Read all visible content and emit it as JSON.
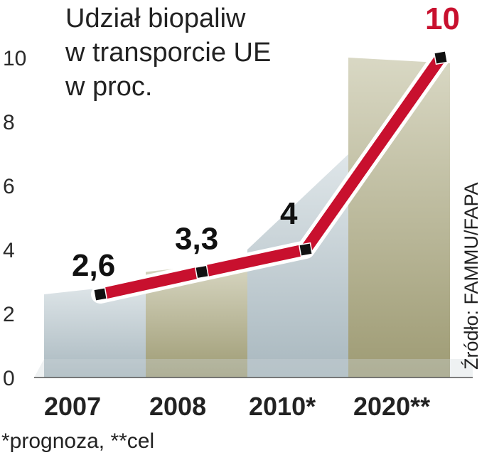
{
  "chart_data": {
    "type": "line",
    "title_lines": [
      "Udział biopaliw",
      "w transporcie UE",
      "w proc."
    ],
    "categories": [
      "2007",
      "2008",
      "2010*",
      "2020**"
    ],
    "values": [
      2.6,
      3.3,
      4,
      10
    ],
    "value_labels": [
      "2,6",
      "3,3",
      "4",
      "10"
    ],
    "highlight_index": 3,
    "y_ticks": [
      "0",
      "2",
      "4",
      "6",
      "8",
      "10"
    ],
    "y_tick_values": [
      0,
      2,
      4,
      6,
      8,
      10
    ],
    "ylim": [
      0,
      10
    ],
    "xlabel": "",
    "ylabel": "",
    "source": "Źródło: FAMMU/FAPA",
    "footnote": "*prognoza, **cel",
    "colors": {
      "line": "#c8102e",
      "line_outline": "#ffffff",
      "marker": "#111111",
      "highlight_label": "#c8102e",
      "band_a": "#b9c6cc",
      "band_b": "#a8a684",
      "axis": "#444444"
    }
  }
}
